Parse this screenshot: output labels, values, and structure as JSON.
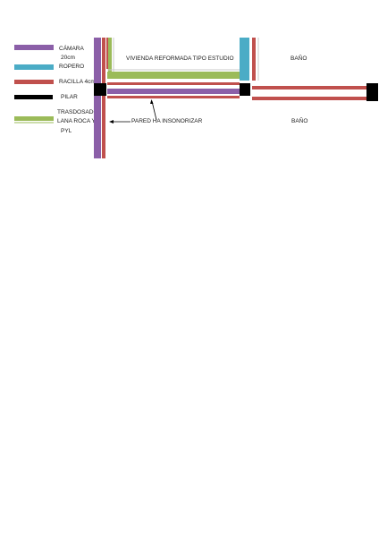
{
  "colors": {
    "camara": "#8b5fa8",
    "ropero": "#4bacc6",
    "racilla": "#c0504d",
    "pilar": "#000000",
    "trasdosado": "#9bbb59"
  },
  "legend": {
    "camara_label": "CÁMARA",
    "camara_sub": "20cm",
    "ropero_label": "ROPERO",
    "racilla_label": "RACILLA 4cm",
    "pilar_label": "PILAR",
    "trasdosado_l1": "TRASDOSADO",
    "trasdosado_l2": "LANA ROCA Y",
    "trasdosado_l3": "PYL"
  },
  "rooms": {
    "vivienda": "VIVIENDA REFORMADA TIPO ESTUDIO",
    "bano_top": "BAÑO",
    "bano_bottom": "BAÑO"
  },
  "annotation": {
    "pared": "PARED  HA INSONORIZAR"
  }
}
